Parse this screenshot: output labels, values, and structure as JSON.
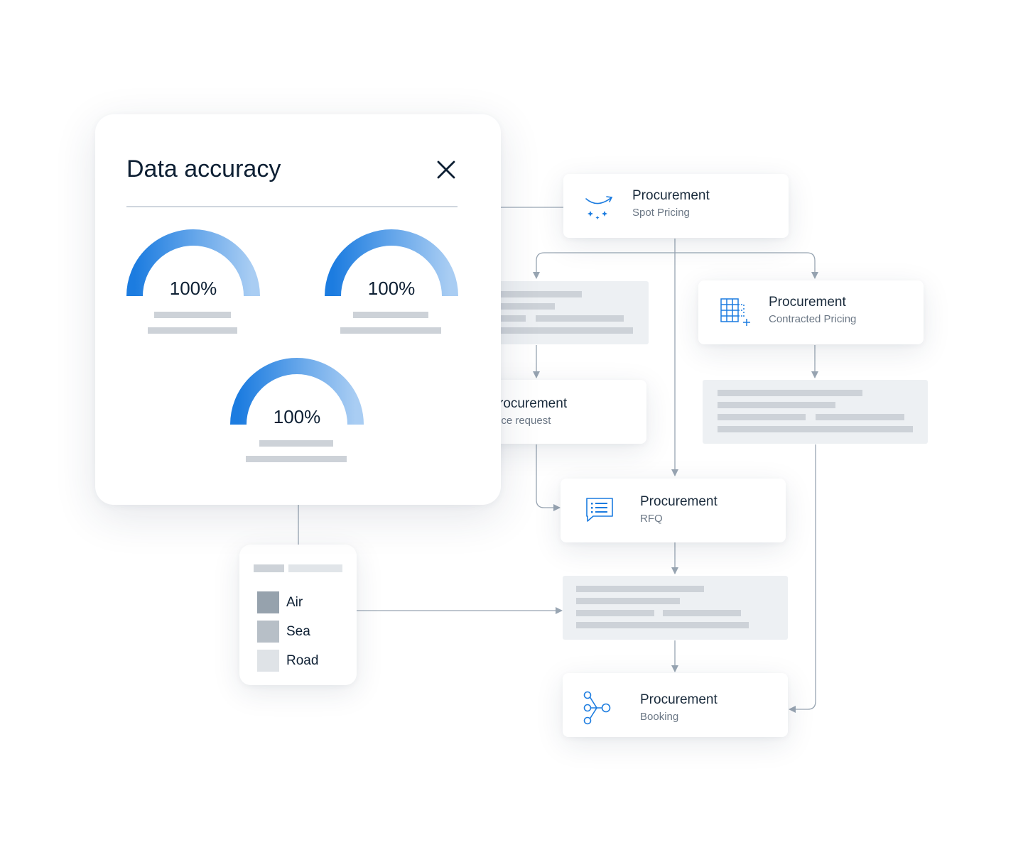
{
  "accuracy_panel": {
    "title": "Data accuracy",
    "gauges": [
      {
        "label": "100%",
        "value": 100
      },
      {
        "label": "100%",
        "value": 100
      },
      {
        "label": "100%",
        "value": 100
      }
    ]
  },
  "nodes": {
    "spot": {
      "title": "Procurement",
      "subtitle": "Spot Pricing",
      "icon": "spot-pricing-icon"
    },
    "contracted": {
      "title": "Procurement",
      "subtitle": "Contracted Pricing",
      "icon": "grid-add-icon"
    },
    "price_request": {
      "title": "rocurement",
      "subtitle": "ice request"
    },
    "rfq": {
      "title": "Procurement",
      "subtitle": "RFQ",
      "icon": "chat-list-icon"
    },
    "booking": {
      "title": "Procurement",
      "subtitle": "Booking",
      "icon": "branch-nodes-icon"
    }
  },
  "legend": {
    "items": [
      {
        "label": "Air",
        "color": "#96a2ad"
      },
      {
        "label": "Sea",
        "color": "#b7bfc7"
      },
      {
        "label": "Road",
        "color": "#dfe3e7"
      }
    ]
  },
  "colors": {
    "accent": "#1c7ce0",
    "accent_light": "#a9cdf3",
    "connector": "#98a5b2",
    "placeholder": "#edf0f3",
    "placeholder_bar": "#cdd2d8"
  }
}
